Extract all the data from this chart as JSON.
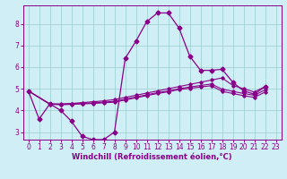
{
  "xlabel": "Windchill (Refroidissement éolien,°C)",
  "bg_color": "#d0eef5",
  "grid_color": "#99cccc",
  "line_color": "#880088",
  "xlim": [
    -0.5,
    23.5
  ],
  "ylim": [
    2.65,
    8.85
  ],
  "x_ticks": [
    0,
    1,
    2,
    3,
    4,
    5,
    6,
    7,
    8,
    9,
    10,
    11,
    12,
    13,
    14,
    15,
    16,
    17,
    18,
    19,
    20,
    21,
    22,
    23
  ],
  "y_ticks": [
    3,
    4,
    5,
    6,
    7,
    8
  ],
  "main_x": [
    0,
    1,
    2,
    3,
    4,
    5,
    6,
    7,
    8,
    9,
    10,
    11,
    12,
    13,
    14,
    15,
    16,
    17,
    18,
    19,
    20,
    21,
    22
  ],
  "main_y": [
    4.9,
    3.6,
    4.3,
    4.0,
    3.5,
    2.8,
    2.65,
    2.65,
    3.0,
    6.4,
    7.2,
    8.1,
    8.5,
    8.5,
    7.8,
    6.5,
    5.85,
    5.85,
    5.9,
    5.3,
    4.9,
    4.75,
    5.1
  ],
  "line2_x": [
    0,
    2,
    3,
    4,
    5,
    6,
    7,
    8,
    9,
    10,
    11,
    12,
    13,
    14,
    15,
    16,
    17,
    18,
    19,
    20,
    21,
    22
  ],
  "line2_y": [
    4.9,
    4.3,
    4.3,
    4.32,
    4.36,
    4.4,
    4.44,
    4.5,
    4.6,
    4.7,
    4.8,
    4.9,
    5.0,
    5.1,
    5.2,
    5.3,
    5.4,
    5.5,
    5.15,
    5.0,
    4.85,
    5.1
  ],
  "line3_x": [
    0,
    2,
    3,
    4,
    5,
    6,
    7,
    8,
    9,
    10,
    11,
    12,
    13,
    14,
    15,
    16,
    17,
    18,
    19,
    20,
    21,
    22
  ],
  "line3_y": [
    4.9,
    4.3,
    4.28,
    4.3,
    4.32,
    4.35,
    4.38,
    4.42,
    4.52,
    4.62,
    4.72,
    4.82,
    4.9,
    5.0,
    5.08,
    5.15,
    5.22,
    4.98,
    4.88,
    4.78,
    4.7,
    4.95
  ],
  "line4_x": [
    0,
    2,
    3,
    4,
    5,
    6,
    7,
    8,
    9,
    10,
    11,
    12,
    13,
    14,
    15,
    16,
    17,
    18,
    19,
    20,
    21,
    22
  ],
  "line4_y": [
    4.9,
    4.28,
    4.26,
    4.28,
    4.3,
    4.32,
    4.35,
    4.38,
    4.48,
    4.58,
    4.68,
    4.78,
    4.86,
    4.96,
    5.02,
    5.08,
    5.14,
    4.88,
    4.78,
    4.68,
    4.6,
    4.85
  ]
}
